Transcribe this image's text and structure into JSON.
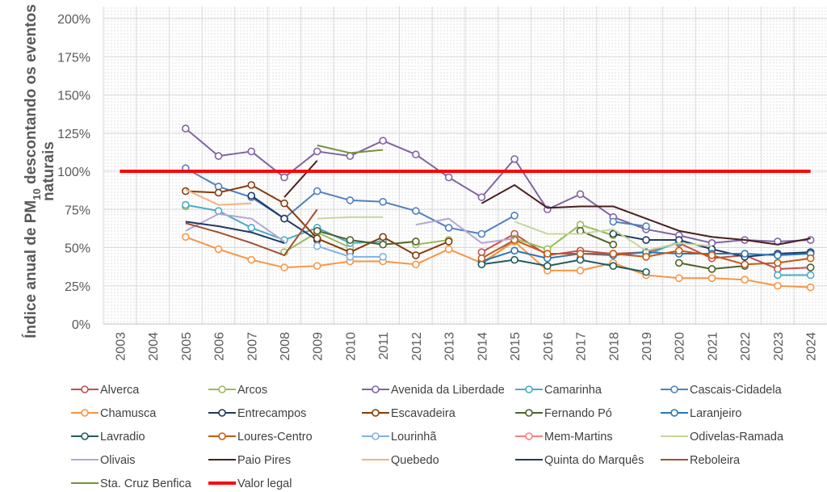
{
  "chart_data": {
    "type": "line",
    "title": "",
    "ylabel_parts": [
      "Índice anual de PM",
      "10",
      " descontando os eventos",
      "naturais"
    ],
    "xlabel": "",
    "ylim": [
      0,
      200
    ],
    "yticks": [
      "0%",
      "25%",
      "50%",
      "75%",
      "100%",
      "125%",
      "150%",
      "175%",
      "200%"
    ],
    "categories": [
      "2003",
      "2004",
      "2005",
      "2006",
      "2007",
      "2008",
      "2009",
      "2010",
      "2011",
      "2012",
      "2013",
      "2014",
      "2015",
      "2016",
      "2017",
      "2018",
      "2019",
      "2020",
      "2021",
      "2022",
      "2023",
      "2024"
    ],
    "grid": true,
    "legend_position": "bottom",
    "series": [
      {
        "name": "Alverca",
        "color": "#c0504d",
        "marker": true,
        "values": [
          null,
          null,
          null,
          null,
          null,
          null,
          null,
          null,
          null,
          null,
          null,
          47,
          59,
          45,
          48,
          46,
          47,
          53,
          43,
          45,
          36,
          37
        ]
      },
      {
        "name": "Arcos",
        "color": "#9bbb59",
        "marker": true,
        "values": [
          null,
          null,
          77,
          null,
          null,
          47,
          60,
          50,
          null,
          52,
          55,
          null,
          56,
          49,
          65,
          58,
          null,
          null,
          null,
          null,
          null,
          47
        ]
      },
      {
        "name": "Avenida da Liberdade",
        "color": "#8064a2",
        "marker": true,
        "values": [
          null,
          null,
          128,
          110,
          113,
          96,
          113,
          110,
          120,
          111,
          96,
          83,
          108,
          75,
          85,
          70,
          62,
          58,
          53,
          55,
          54,
          55
        ]
      },
      {
        "name": "Camarinha",
        "color": "#4bacc6",
        "marker": true,
        "values": [
          null,
          null,
          78,
          74,
          63,
          55,
          63,
          53,
          54,
          null,
          null,
          39,
          55,
          null,
          43,
          null,
          45,
          54,
          null,
          null,
          32,
          32
        ]
      },
      {
        "name": "Cascais-Cidadela",
        "color": "#4f81bd",
        "marker": true,
        "values": [
          null,
          null,
          102,
          90,
          83,
          69,
          87,
          81,
          80,
          74,
          63,
          59,
          71,
          null,
          null,
          67,
          64,
          null,
          null,
          null,
          null,
          null
        ]
      },
      {
        "name": "Chamusca",
        "color": "#f79646",
        "marker": true,
        "values": [
          null,
          null,
          57,
          49,
          42,
          37,
          38,
          41,
          41,
          39,
          49,
          40,
          54,
          35,
          35,
          40,
          32,
          30,
          30,
          29,
          25,
          24
        ]
      },
      {
        "name": "Entrecampos",
        "color": "#1f3864",
        "marker": true,
        "values": [
          null,
          null,
          null,
          null,
          84,
          69,
          55,
          null,
          null,
          null,
          null,
          null,
          null,
          null,
          null,
          59,
          55,
          55,
          49,
          44,
          46,
          47
        ]
      },
      {
        "name": "Escavadeira",
        "color": "#843c0c",
        "marker": true,
        "values": [
          null,
          null,
          87,
          86,
          91,
          79,
          56,
          47,
          57,
          45,
          54,
          null,
          null,
          null,
          null,
          null,
          null,
          null,
          null,
          null,
          null,
          null
        ]
      },
      {
        "name": "Fernando Pó",
        "color": "#4f6228",
        "marker": true,
        "values": [
          null,
          null,
          null,
          null,
          null,
          null,
          61,
          55,
          52,
          54,
          null,
          null,
          null,
          null,
          61,
          52,
          null,
          40,
          36,
          38,
          null,
          37
        ]
      },
      {
        "name": "Laranjeiro",
        "color": "#2e75b6",
        "marker": true,
        "values": [
          null,
          null,
          null,
          null,
          null,
          null,
          null,
          null,
          null,
          null,
          null,
          41,
          48,
          43,
          46,
          45,
          47,
          46,
          46,
          46,
          45,
          46
        ]
      },
      {
        "name": "Lavradio",
        "color": "#1f5c5c",
        "marker": true,
        "values": [
          null,
          null,
          null,
          null,
          null,
          null,
          null,
          null,
          null,
          null,
          null,
          39,
          42,
          38,
          42,
          38,
          34,
          null,
          null,
          null,
          null,
          null
        ]
      },
      {
        "name": "Loures-Centro",
        "color": "#c55a11",
        "marker": true,
        "values": [
          null,
          null,
          null,
          null,
          null,
          null,
          null,
          null,
          null,
          null,
          null,
          43,
          55,
          46,
          46,
          46,
          44,
          48,
          45,
          39,
          40,
          43
        ]
      },
      {
        "name": "Lourinhã",
        "color": "#7fb2e5",
        "marker": true,
        "values": [
          null,
          null,
          null,
          null,
          null,
          null,
          51,
          44,
          44,
          null,
          null,
          null,
          null,
          null,
          null,
          null,
          null,
          null,
          null,
          null,
          null,
          null
        ]
      },
      {
        "name": "Mem-Martins",
        "color": "#ff7c80",
        "marker": true,
        "values": [
          null,
          null,
          null,
          null,
          null,
          null,
          null,
          null,
          null,
          null,
          null,
          null,
          null,
          null,
          null,
          null,
          null,
          null,
          null,
          null,
          null,
          null
        ]
      },
      {
        "name": "Odivelas-Ramada",
        "color": "#c4d79b",
        "marker": false,
        "values": [
          null,
          null,
          null,
          null,
          null,
          null,
          69,
          70,
          70,
          null,
          null,
          null,
          67,
          59,
          59,
          62,
          48,
          53,
          51,
          null,
          null,
          null
        ]
      },
      {
        "name": "Olivais",
        "color": "#b4a7d6",
        "marker": false,
        "values": [
          null,
          null,
          61,
          72,
          69,
          54,
          null,
          null,
          null,
          65,
          69,
          53,
          56,
          null,
          null,
          null,
          null,
          null,
          null,
          null,
          null,
          null
        ]
      },
      {
        "name": "Paio Pires",
        "color": "#4a1f1f",
        "marker": false,
        "values": [
          null,
          null,
          null,
          null,
          null,
          83,
          107,
          null,
          null,
          null,
          null,
          79,
          91,
          76,
          77,
          77,
          69,
          61,
          57,
          55,
          52,
          56
        ]
      },
      {
        "name": "Quebedo",
        "color": "#f4b183",
        "marker": false,
        "values": [
          null,
          null,
          88,
          78,
          79,
          null,
          null,
          null,
          null,
          null,
          null,
          null,
          null,
          null,
          null,
          null,
          null,
          null,
          null,
          null,
          null,
          null
        ]
      },
      {
        "name": "Quinta do Marquês",
        "color": "#203864",
        "marker": false,
        "values": [
          null,
          null,
          67,
          64,
          60,
          53,
          null,
          null,
          null,
          null,
          null,
          null,
          null,
          null,
          null,
          null,
          null,
          null,
          null,
          null,
          null,
          null
        ]
      },
      {
        "name": "Reboleira",
        "color": "#a0522d",
        "marker": false,
        "values": [
          null,
          null,
          66,
          60,
          53,
          45,
          75,
          null,
          null,
          null,
          null,
          null,
          null,
          null,
          null,
          null,
          null,
          null,
          null,
          null,
          null,
          null
        ]
      },
      {
        "name": "Sta. Cruz Benfica",
        "color": "#76923c",
        "marker": false,
        "values": [
          null,
          null,
          null,
          null,
          null,
          null,
          117,
          112,
          114,
          null,
          null,
          null,
          null,
          null,
          null,
          null,
          null,
          null,
          null,
          null,
          null,
          null
        ]
      },
      {
        "name": "Valor legal",
        "color": "#ff0000",
        "marker": false,
        "thick": true,
        "values": [
          100,
          100,
          100,
          100,
          100,
          100,
          100,
          100,
          100,
          100,
          100,
          100,
          100,
          100,
          100,
          100,
          100,
          100,
          100,
          100,
          100,
          100
        ]
      }
    ]
  }
}
